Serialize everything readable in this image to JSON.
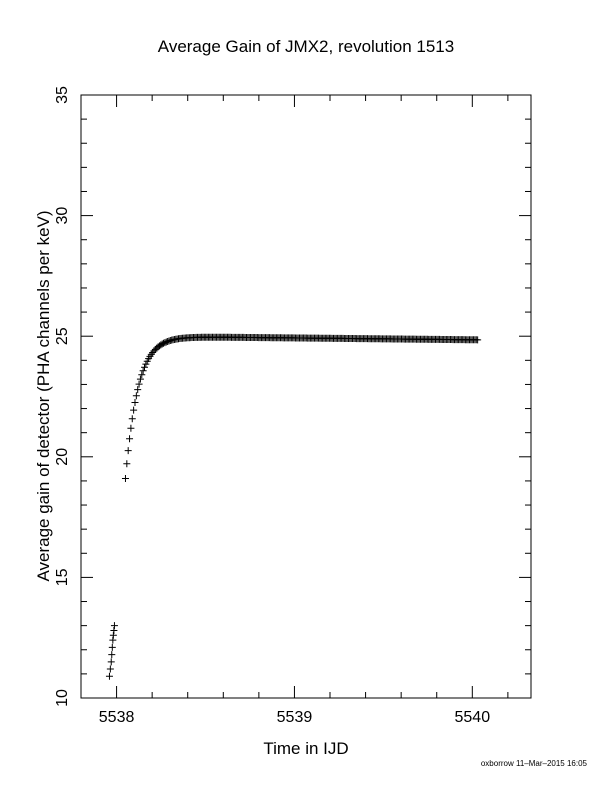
{
  "chart_data": {
    "type": "scatter",
    "title": "Average Gain of JMX2, revolution 1513",
    "xlabel": "Time in IJD",
    "ylabel": "Average gain of detector (PHA channels per keV)",
    "xlim": [
      5537.8,
      5540.33
    ],
    "ylim": [
      10,
      35
    ],
    "xticks": [
      5538,
      5539,
      5540
    ],
    "yticks": [
      10,
      15,
      20,
      25,
      30,
      35
    ],
    "marker": "plus",
    "grid": false,
    "series": [
      {
        "name": "",
        "segments": [
          {
            "x": [
              5537.96,
              5537.965,
              5537.97,
              5537.973,
              5537.976,
              5537.979,
              5537.982,
              5537.985,
              5537.988
            ],
            "y": [
              10.9,
              11.2,
              11.5,
              11.8,
              12.1,
              12.4,
              12.6,
              12.8,
              13.0
            ]
          },
          {
            "x_start": 5538.05,
            "x_end": 5540.03,
            "count": 260,
            "model": "plateau",
            "y_start": 19.1,
            "y_plateau": 25.0,
            "y_end": 24.85,
            "rise_tau": 0.07
          }
        ]
      }
    ],
    "footer": "oxborrow 11–Mar–2015 16:05"
  }
}
